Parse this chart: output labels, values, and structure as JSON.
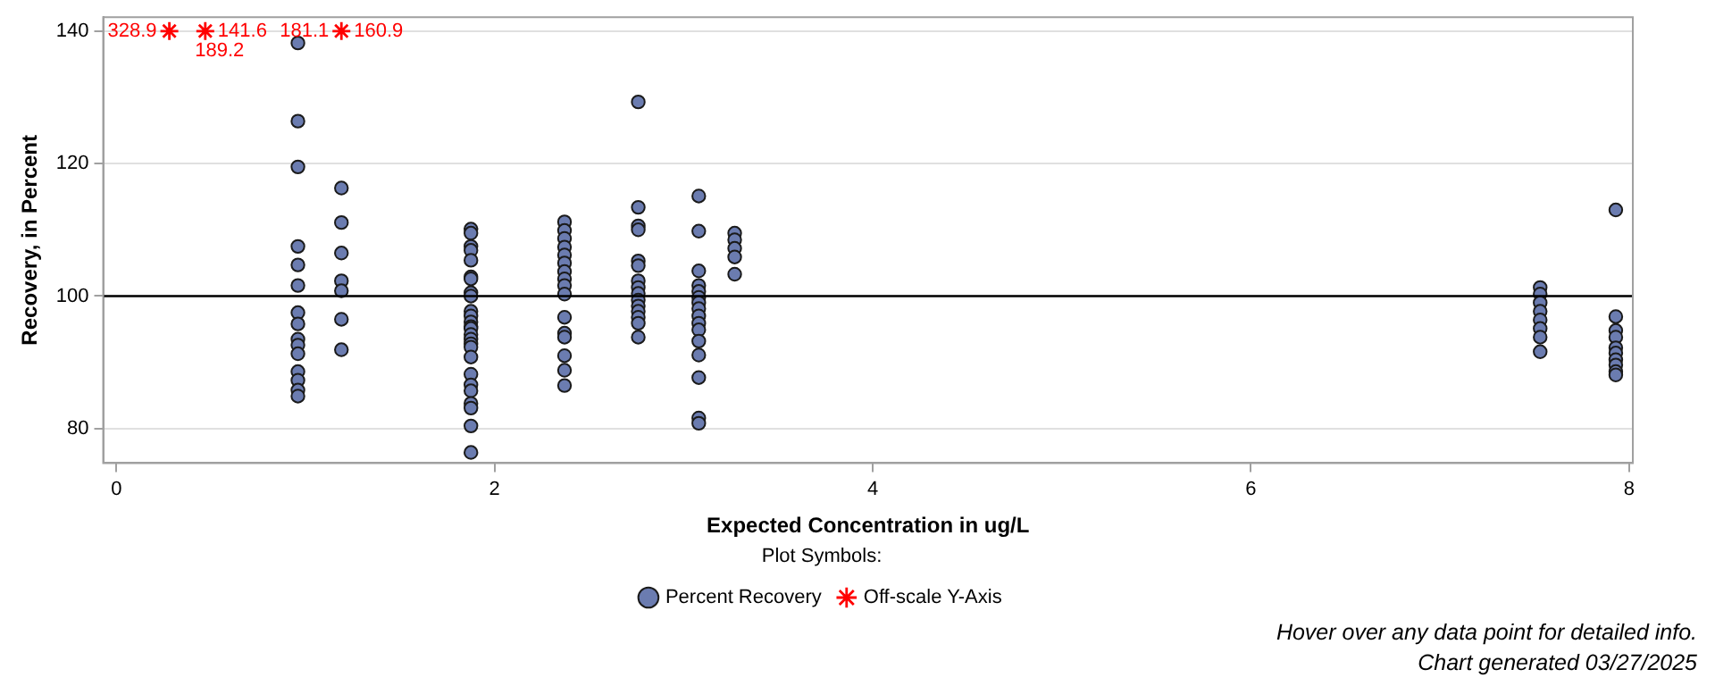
{
  "chart_data": {
    "type": "scatter",
    "xlabel": "Expected Concentration in ug/L",
    "ylabel": "Recovery, in Percent",
    "legend_title": "Plot Symbols:",
    "legend": "bottom",
    "grid": "y",
    "xlim": [
      -0.07,
      8.02
    ],
    "xticks": [
      0,
      2,
      4,
      6,
      8
    ],
    "ylim": [
      74.8,
      142.1
    ],
    "yticks": [
      80,
      100,
      120,
      140
    ],
    "ref_lines": [
      {
        "axis": "y",
        "value": 100,
        "color": "#000000"
      }
    ],
    "annotations": [
      "Hover over any data point for detailed info.",
      "Chart generated 03/27/2025",
      {
        "text": "328.9",
        "x": 0.28,
        "y": 140
      },
      {
        "text": "189.2",
        "x": 0.47,
        "y": 140
      },
      {
        "text": "141.6",
        "x": 0.47,
        "y": 140
      },
      {
        "text": "181.1",
        "x": 1.19,
        "y": 140
      },
      {
        "text": "160.9",
        "x": 1.19,
        "y": 140
      }
    ],
    "series": [
      {
        "name": "Percent Recovery",
        "color": "#6b7cb0",
        "marker": "circle",
        "x": [
          0.96,
          0.96,
          0.96,
          0.96,
          0.96,
          0.96,
          0.96,
          0.96,
          0.96,
          0.96,
          0.96,
          0.96,
          0.96,
          0.96,
          0.96,
          1.19,
          1.19,
          1.19,
          1.19,
          1.19,
          1.19,
          1.19,
          1.875,
          1.875,
          1.875,
          1.875,
          1.875,
          1.875,
          1.875,
          1.875,
          1.875,
          1.875,
          1.875,
          1.875,
          1.875,
          1.875,
          1.875,
          1.875,
          1.875,
          1.875,
          1.875,
          1.875,
          1.875,
          1.875,
          1.875,
          1.875,
          1.875,
          1.875,
          2.37,
          2.37,
          2.37,
          2.37,
          2.37,
          2.37,
          2.37,
          2.37,
          2.37,
          2.37,
          2.37,
          2.37,
          2.37,
          2.37,
          2.37,
          2.37,
          2.76,
          2.76,
          2.76,
          2.76,
          2.76,
          2.76,
          2.76,
          2.76,
          2.76,
          2.76,
          2.76,
          2.76,
          2.76,
          2.76,
          2.76,
          3.08,
          3.08,
          3.08,
          3.08,
          3.08,
          3.08,
          3.08,
          3.08,
          3.08,
          3.08,
          3.08,
          3.08,
          3.08,
          3.08,
          3.08,
          3.08,
          3.27,
          3.27,
          3.27,
          3.27,
          3.27,
          7.53,
          7.53,
          7.53,
          7.53,
          7.53,
          7.53,
          7.53,
          7.53,
          7.93,
          7.93,
          7.93,
          7.93,
          7.93,
          7.93,
          7.93,
          7.93,
          7.93,
          7.93
        ],
        "values": [
          138.2,
          126.4,
          119.5,
          107.5,
          104.7,
          101.6,
          97.5,
          95.8,
          93.5,
          92.6,
          91.3,
          88.6,
          87.3,
          85.8,
          84.9,
          116.3,
          111.1,
          106.5,
          102.3,
          100.8,
          96.5,
          91.9,
          110.1,
          109.5,
          107.5,
          106.9,
          105.4,
          102.9,
          102.6,
          100.5,
          100,
          97.7,
          97,
          96.1,
          95.4,
          95.1,
          94.2,
          93.5,
          92.8,
          92.3,
          90.8,
          88.2,
          86.6,
          85.7,
          83.8,
          83.1,
          80.4,
          76.4,
          111.2,
          109.9,
          108.7,
          107.4,
          106.2,
          105,
          103.7,
          102.6,
          101.6,
          100.3,
          96.8,
          94.4,
          93.8,
          91,
          88.8,
          86.5,
          129.3,
          113.4,
          110.6,
          110,
          105.3,
          104.6,
          102.3,
          101.3,
          100.4,
          99.4,
          98.5,
          97.7,
          96.8,
          95.9,
          93.8,
          115.1,
          109.8,
          103.8,
          101.6,
          100.7,
          99.8,
          99,
          98.1,
          97,
          95.9,
          94.9,
          93.2,
          91.1,
          87.7,
          81.6,
          80.8,
          109.5,
          108.5,
          107.2,
          105.9,
          103.3,
          101.3,
          100.3,
          99,
          97.7,
          96.4,
          95.1,
          93.8,
          91.6,
          113,
          96.9,
          94.8,
          93.8,
          92.2,
          91.4,
          90.4,
          89.6,
          88.6,
          88.1
        ]
      },
      {
        "name": "Off-scale Y-Axis",
        "color": "#ff0000",
        "marker": "cross",
        "x": [
          0.28,
          0.47,
          1.19
        ],
        "values": [
          140,
          140,
          140
        ]
      }
    ]
  }
}
